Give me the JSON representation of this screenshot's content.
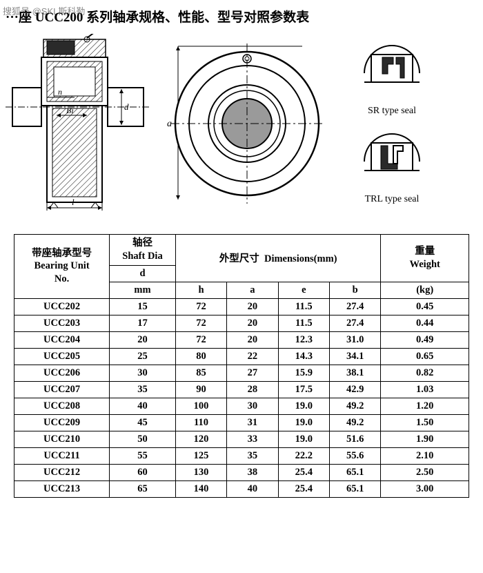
{
  "watermark": "搜狐号 @SKL斯科勒",
  "title": "···座 UCC200 系列轴承规格、性能、型号对照参数表",
  "diagram_labels": {
    "n": "n",
    "Bi": "Bi",
    "d": "d",
    "l": "l",
    "a": "a"
  },
  "seals": {
    "sr": "SR type seal",
    "trl": "TRL type seal"
  },
  "colors": {
    "stroke": "#000000",
    "fill_dark": "#2a2a2a",
    "fill_hatch": "#9a9a9a",
    "centerline": "#000000",
    "bg": "#ffffff"
  },
  "table": {
    "headers": {
      "unit_no_cn": "带座轴承型号",
      "unit_no_en": "Bearing Unit",
      "unit_no_en2": "No.",
      "shaft_dia_cn": "轴径",
      "shaft_dia_en": "Shaft Dia",
      "d": "d",
      "mm": "mm",
      "dims_cn": "外型尺寸",
      "dims_en": "Dimensions(mm)",
      "h": "h",
      "a": "a",
      "e": "e",
      "b": "b",
      "weight_cn": "重量",
      "weight_en": "Weight",
      "weight_unit": "(kg)"
    },
    "rows": [
      {
        "no": "UCC202",
        "d": "15",
        "h": "72",
        "a": "20",
        "e": "11.5",
        "b": "27.4",
        "w": "0.45"
      },
      {
        "no": "UCC203",
        "d": "17",
        "h": "72",
        "a": "20",
        "e": "11.5",
        "b": "27.4",
        "w": "0.44"
      },
      {
        "no": "UCC204",
        "d": "20",
        "h": "72",
        "a": "20",
        "e": "12.3",
        "b": "31.0",
        "w": "0.49"
      },
      {
        "no": "UCC205",
        "d": "25",
        "h": "80",
        "a": "22",
        "e": "14.3",
        "b": "34.1",
        "w": "0.65"
      },
      {
        "no": "UCC206",
        "d": "30",
        "h": "85",
        "a": "27",
        "e": "15.9",
        "b": "38.1",
        "w": "0.82"
      },
      {
        "no": "UCC207",
        "d": "35",
        "h": "90",
        "a": "28",
        "e": "17.5",
        "b": "42.9",
        "w": "1.03"
      },
      {
        "no": "UCC208",
        "d": "40",
        "h": "100",
        "a": "30",
        "e": "19.0",
        "b": "49.2",
        "w": "1.20"
      },
      {
        "no": "UCC209",
        "d": "45",
        "h": "110",
        "a": "31",
        "e": "19.0",
        "b": "49.2",
        "w": "1.50"
      },
      {
        "no": "UCC210",
        "d": "50",
        "h": "120",
        "a": "33",
        "e": "19.0",
        "b": "51.6",
        "w": "1.90"
      },
      {
        "no": "UCC211",
        "d": "55",
        "h": "125",
        "a": "35",
        "e": "22.2",
        "b": "55.6",
        "w": "2.10"
      },
      {
        "no": "UCC212",
        "d": "60",
        "h": "130",
        "a": "38",
        "e": "25.4",
        "b": "65.1",
        "w": "2.50"
      },
      {
        "no": "UCC213",
        "d": "65",
        "h": "140",
        "a": "40",
        "e": "25.4",
        "b": "65.1",
        "w": "3.00"
      }
    ]
  }
}
